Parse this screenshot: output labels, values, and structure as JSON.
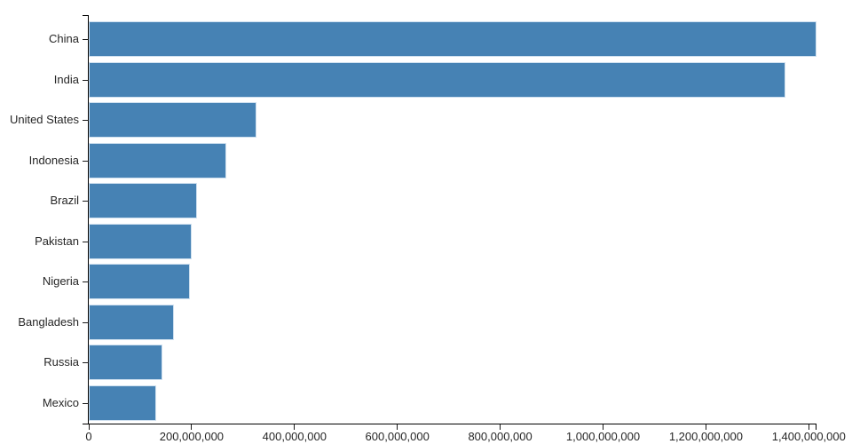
{
  "chart_data": {
    "type": "bar",
    "orientation": "horizontal",
    "categories": [
      "China",
      "India",
      "United States",
      "Indonesia",
      "Brazil",
      "Pakistan",
      "Nigeria",
      "Bangladesh",
      "Russia",
      "Mexico"
    ],
    "values": [
      1415045928,
      1354051854,
      326766748,
      266794980,
      210867954,
      200813818,
      195875237,
      166368149,
      143964709,
      130759074
    ],
    "x_tick_values": [
      0,
      200000000,
      400000000,
      600000000,
      800000000,
      1000000000,
      1200000000,
      1400000000
    ],
    "x_tick_labels": [
      "0",
      "200,000,000",
      "400,000,000",
      "600,000,000",
      "800,000,000",
      "1,000,000,000",
      "1,200,000,000",
      "1,400,000,000"
    ],
    "xlim": [
      0,
      1415045928
    ],
    "xlabel": "",
    "ylabel": "",
    "title": "",
    "grid": "off",
    "legend": "none",
    "colors": {
      "bar_fill": "#4682b4",
      "bar_stroke": "#cfe0ef",
      "axis": "#000000",
      "text": "#262626",
      "background": "#ffffff"
    }
  }
}
